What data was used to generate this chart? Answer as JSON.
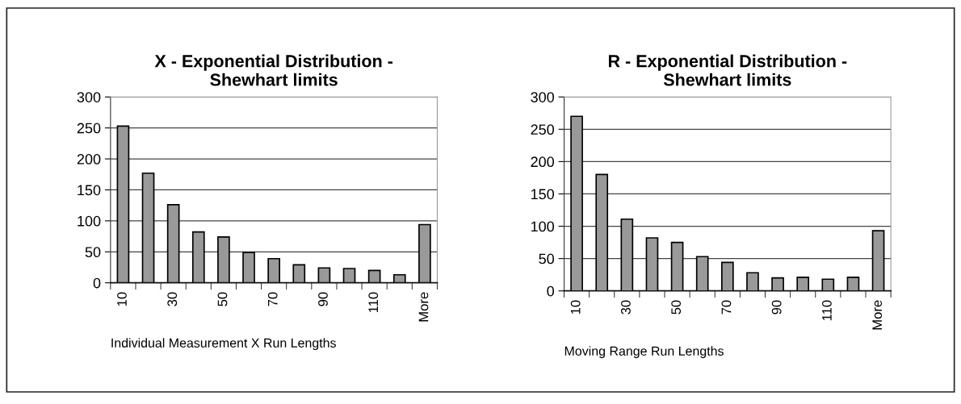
{
  "chart_data": [
    {
      "type": "bar",
      "title": "X - Exponential Distribution -\nShewhart limits",
      "xlabel": "Individual Measurement X Run Lengths",
      "categories": [
        "10",
        null,
        "30",
        null,
        "50",
        null,
        "70",
        null,
        "90",
        null,
        "110",
        null,
        "More"
      ],
      "values": [
        253,
        177,
        126,
        82,
        74,
        49,
        39,
        29,
        24,
        23,
        20,
        13,
        94
      ],
      "color": "#999999",
      "ylim": [
        0,
        300
      ],
      "yticks": [
        0,
        50,
        100,
        150,
        200,
        250,
        300
      ],
      "grid": "y"
    },
    {
      "type": "bar",
      "title": "R - Exponential Distribution -\nShewhart limits",
      "xlabel": "Moving Range Run Lengths",
      "categories": [
        "10",
        null,
        "30",
        null,
        "50",
        null,
        "70",
        null,
        "90",
        null,
        "110",
        null,
        "More"
      ],
      "values": [
        270,
        180,
        111,
        82,
        75,
        53,
        44,
        28,
        20,
        21,
        18,
        21,
        93
      ],
      "color": "#999999",
      "ylim": [
        0,
        300
      ],
      "yticks": [
        0,
        50,
        100,
        150,
        200,
        250,
        300
      ],
      "grid": "y"
    }
  ]
}
